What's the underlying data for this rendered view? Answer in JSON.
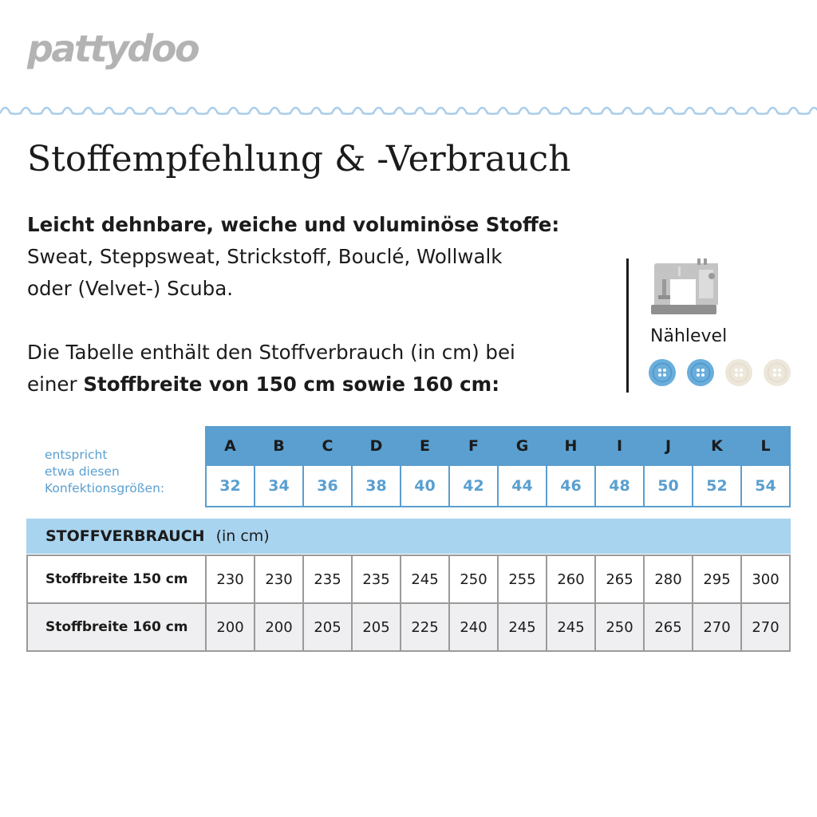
{
  "brand": {
    "logo_text": "pattydoo"
  },
  "header": {
    "title": "Stoffempfehlung & -Verbrauch"
  },
  "intro": {
    "fabrics_heading": "Leicht dehnbare, weiche und voluminöse Stoffe:",
    "fabrics_line1": "Sweat, Steppsweat, Strickstoff, Bouclé, Wollwalk",
    "fabrics_line2": "oder (Velvet-) Scuba.",
    "table_note_line1": "Die Tabelle enthält den Stoffverbrauch (in cm) bei",
    "table_note_prefix": "einer ",
    "table_note_bold": "Stoffbreite von 150 cm sowie 160 cm:"
  },
  "skill": {
    "icon": "sewing-machine-icon",
    "label": "Nählevel",
    "level": 2,
    "max": 4,
    "active_color": "#6aaedb",
    "inactive_color": "#ece7da"
  },
  "sizes": {
    "caption": [
      "entspricht",
      "etwa diesen",
      "Konfektionsgrößen:"
    ],
    "letters": [
      "A",
      "B",
      "C",
      "D",
      "E",
      "F",
      "G",
      "H",
      "I",
      "J",
      "K",
      "L"
    ],
    "numbers": [
      "32",
      "34",
      "36",
      "38",
      "40",
      "42",
      "44",
      "46",
      "48",
      "50",
      "52",
      "54"
    ]
  },
  "consumption": {
    "heading": "STOFFVERBRAUCH",
    "unit": "(in cm)",
    "rows": [
      {
        "label": "Stoffbreite 150 cm",
        "values": [
          "230",
          "230",
          "235",
          "235",
          "245",
          "250",
          "255",
          "260",
          "265",
          "280",
          "295",
          "300"
        ]
      },
      {
        "label": "Stoffbreite 160 cm",
        "values": [
          "200",
          "200",
          "205",
          "205",
          "225",
          "240",
          "245",
          "245",
          "250",
          "265",
          "270",
          "270"
        ]
      }
    ]
  },
  "colors": {
    "accent_blue": "#5a9fd0",
    "light_blue": "#a9d4ef",
    "logo_gray": "#b3b3b3"
  }
}
